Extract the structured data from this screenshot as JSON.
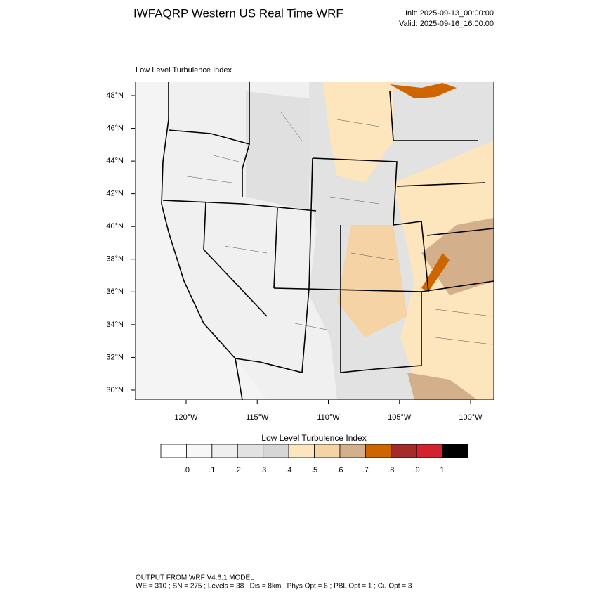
{
  "header": {
    "title": "IWFAQRP Western US Real Time WRF",
    "init": "Init: 2025-09-13_00:00:00",
    "valid": "Valid: 2025-09-16_16:00:00"
  },
  "map": {
    "title": "Low Level Turbulence Index",
    "lat_labels": [
      "48°N",
      "46°N",
      "44°N",
      "42°N",
      "40°N",
      "38°N",
      "36°N",
      "34°N",
      "32°N",
      "30°N"
    ],
    "lon_labels": [
      "120°W",
      "115°W",
      "110°W",
      "105°W",
      "100°W"
    ]
  },
  "colorbar": {
    "title": "Low Level Turbulence Index",
    "colors": [
      "#ffffff",
      "#f7f7f7",
      "#efefef",
      "#e2e2e2",
      "#d6d6d6",
      "#fde5bd",
      "#f5d3a5",
      "#d3b08b",
      "#cd6600",
      "#a52a2a",
      "#d3212d",
      "#000000"
    ],
    "labels": [
      ".0",
      ".1",
      ".2",
      ".3",
      ".4",
      ".5",
      ".6",
      ".7",
      ".8",
      ".9",
      "1"
    ]
  },
  "footer": {
    "line1": "OUTPUT FROM WRF V4.6.1 MODEL",
    "line2": "WE = 310 ; SN = 275 ; Levels = 38 ; Dis = 8km ; Phys Opt = 8 ; PBL Opt = 1 ; Cu Opt = 3"
  }
}
